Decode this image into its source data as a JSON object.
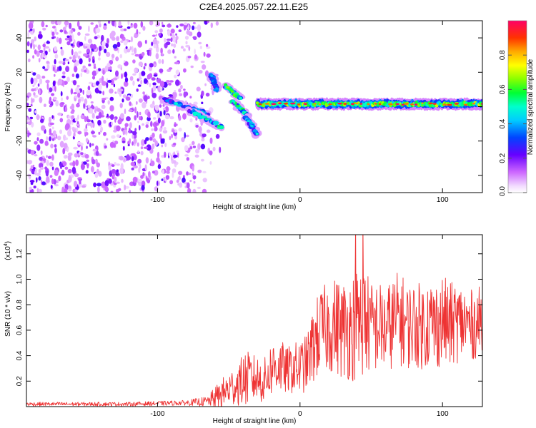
{
  "title": "C2E4.2025.057.22.11.E25",
  "chart_data": [
    {
      "type": "heatmap",
      "title": "C2E4.2025.057.22.11.E25",
      "xlabel": "Height of straight line (km)",
      "ylabel": "Frequency (Hz)",
      "xlim": [
        -192,
        128
      ],
      "ylim": [
        -50,
        50
      ],
      "x_ticks": [
        -100,
        0,
        100
      ],
      "x_tick_labels": [
        "-100",
        "0",
        "100"
      ],
      "y_ticks": [
        -40,
        -20,
        0,
        20,
        40
      ],
      "y_tick_labels": [
        "-40",
        "-20",
        "0",
        "20",
        "40"
      ],
      "colorbar": {
        "label": "Normalized spectral amplitude",
        "range": [
          0.0,
          1.0
        ],
        "ticks": [
          0.0,
          0.2,
          0.4,
          0.6,
          0.8
        ],
        "tick_labels": [
          "0.0",
          "0.2",
          "0.4",
          "0.6",
          "0.8"
        ],
        "colormap": [
          "#ffffff",
          "#e6ccff",
          "#9933ff",
          "#2200ff",
          "#0088ff",
          "#00ffff",
          "#00ff44",
          "#88ff00",
          "#ffff00",
          "#ff8800",
          "#ff0000",
          "#ff0066"
        ]
      },
      "features": {
        "noise_region_x": [
          -192,
          -65
        ],
        "noise_amplitude_range": [
          0.05,
          0.3
        ],
        "blob_groups": [
          {
            "x": [
              -95,
              -65
            ],
            "y": [
              4,
              -4
            ],
            "amplitude": 0.35
          },
          {
            "x": [
              -78,
              -55
            ],
            "y": [
              -2,
              -12
            ],
            "amplitude": 0.45
          },
          {
            "x": [
              -62,
              -58
            ],
            "y": [
              18,
              10
            ],
            "amplitude": 0.3
          },
          {
            "x": [
              -52,
              -42
            ],
            "y": [
              12,
              5
            ],
            "amplitude": 0.55
          },
          {
            "x": [
              -47,
              -37
            ],
            "y": [
              3,
              -5
            ],
            "amplitude": 0.5
          },
          {
            "x": [
              -38,
              -30
            ],
            "y": [
              -6,
              -16
            ],
            "amplitude": 0.35
          }
        ],
        "signal_band": {
          "x": [
            -30,
            128
          ],
          "center_y": 1.5,
          "half_width": 2.5,
          "amplitude_range": [
            0.3,
            1.0
          ]
        }
      }
    },
    {
      "type": "line",
      "xlabel": "Height of straight line (km)",
      "ylabel": "SNR (10 * v/v)",
      "exponent_label": "(x10",
      "exponent_value": "4",
      "exponent_close": ")",
      "xlim": [
        -192,
        128
      ],
      "ylim": [
        0.0,
        1.35
      ],
      "x_ticks": [
        -100,
        0,
        100
      ],
      "x_tick_labels": [
        "-100",
        "0",
        "100"
      ],
      "y_ticks": [
        0.2,
        0.4,
        0.6,
        0.8,
        1.0,
        1.2
      ],
      "y_tick_labels": [
        "0.2",
        "0.4",
        "0.6",
        "0.8",
        "1.0",
        "1.2"
      ],
      "series": [
        {
          "color": "#ee3333",
          "envelope": {
            "x": [
              -192,
              -120,
              -80,
              -65,
              -55,
              -45,
              -38,
              -30,
              -25,
              -20,
              -15,
              -10,
              -5,
              0,
              5,
              10,
              15,
              20,
              25,
              30,
              35,
              40,
              45,
              50,
              55,
              60,
              65,
              70,
              75,
              80,
              85,
              90,
              95,
              100,
              105,
              110,
              115,
              120,
              125,
              128
            ],
            "mean": [
              0.02,
              0.02,
              0.03,
              0.04,
              0.1,
              0.17,
              0.22,
              0.22,
              0.2,
              0.3,
              0.33,
              0.28,
              0.3,
              0.3,
              0.35,
              0.5,
              0.6,
              0.62,
              0.64,
              0.6,
              0.62,
              0.66,
              0.68,
              0.62,
              0.63,
              0.6,
              0.66,
              0.7,
              0.63,
              0.65,
              0.63,
              0.66,
              0.64,
              0.68,
              0.64,
              0.66,
              0.66,
              0.64,
              0.66,
              0.66
            ],
            "spread": [
              0.015,
              0.015,
              0.02,
              0.04,
              0.12,
              0.16,
              0.22,
              0.18,
              0.18,
              0.22,
              0.24,
              0.18,
              0.2,
              0.22,
              0.22,
              0.32,
              0.34,
              0.36,
              0.38,
              0.4,
              0.42,
              0.46,
              0.44,
              0.36,
              0.36,
              0.34,
              0.36,
              0.38,
              0.34,
              0.34,
              0.34,
              0.36,
              0.36,
              0.36,
              0.34,
              0.32,
              0.3,
              0.28,
              0.28,
              0.3
            ]
          }
        }
      ]
    }
  ]
}
